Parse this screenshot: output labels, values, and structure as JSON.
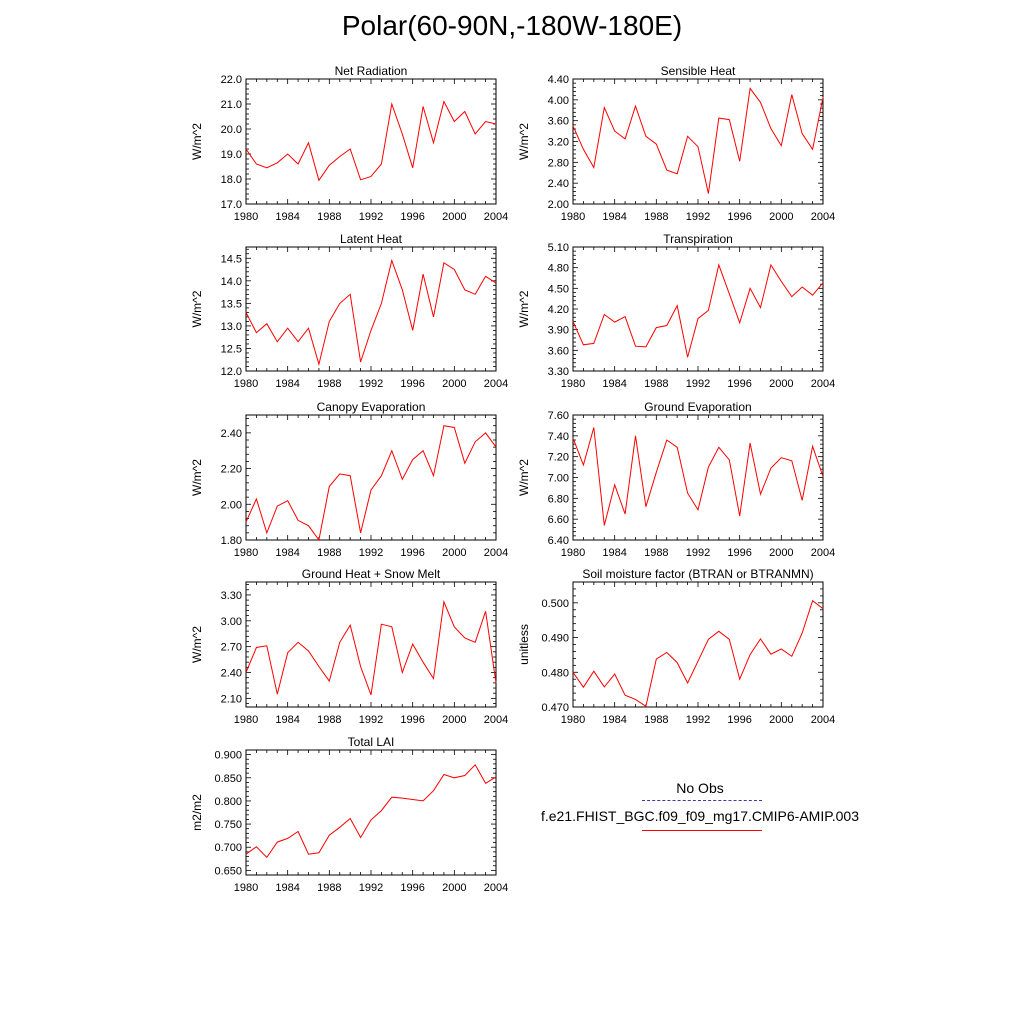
{
  "title": "Polar(60-90N,-180W-180E)",
  "legend": {
    "obs_label": "No Obs",
    "obs_color": "#3a3aa8",
    "model_label": "f.e21.FHIST_BGC.f09_f09_mg17.CMIP6-AMIP.003",
    "model_color": "#ff0000"
  },
  "chart_data": [
    {
      "type": "line",
      "title": "Net Radiation",
      "xlabel": "",
      "ylabel": "W/m^2",
      "xlim": [
        1980,
        2004
      ],
      "ylim": [
        17.0,
        22.0
      ],
      "xticks": [
        1980,
        1984,
        1988,
        1992,
        1996,
        2000,
        2004
      ],
      "yticks": [
        "17.0",
        "18.0",
        "19.0",
        "20.0",
        "21.0",
        "22.0"
      ],
      "x": [
        1980,
        1981,
        1982,
        1983,
        1984,
        1985,
        1986,
        1987,
        1988,
        1989,
        1990,
        1991,
        1992,
        1993,
        1994,
        1995,
        1996,
        1997,
        1998,
        1999,
        2000,
        2001,
        2002,
        2003,
        2004
      ],
      "series": [
        {
          "name": "f.e21.FHIST_BGC.f09_f09_mg17.CMIP6-AMIP.003",
          "values": [
            19.2,
            18.6,
            18.45,
            18.65,
            19.0,
            18.6,
            19.45,
            17.95,
            18.55,
            18.9,
            19.2,
            17.97,
            18.1,
            18.6,
            21.0,
            19.8,
            18.45,
            20.9,
            19.45,
            21.1,
            20.3,
            20.7,
            19.8,
            20.3,
            20.2
          ]
        }
      ]
    },
    {
      "type": "line",
      "title": "Sensible Heat",
      "xlabel": "",
      "ylabel": "W/m^2",
      "xlim": [
        1980,
        2004
      ],
      "ylim": [
        2.0,
        4.4
      ],
      "xticks": [
        1980,
        1984,
        1988,
        1992,
        1996,
        2000,
        2004
      ],
      "yticks": [
        "2.00",
        "2.40",
        "2.80",
        "3.20",
        "3.60",
        "4.00",
        "4.40"
      ],
      "x": [
        1980,
        1981,
        1982,
        1983,
        1984,
        1985,
        1986,
        1987,
        1988,
        1989,
        1990,
        1991,
        1992,
        1993,
        1994,
        1995,
        1996,
        1997,
        1998,
        1999,
        2000,
        2001,
        2002,
        2003,
        2004
      ],
      "series": [
        {
          "name": "f.e21.FHIST_BGC.f09_f09_mg17.CMIP6-AMIP.003",
          "values": [
            3.5,
            3.05,
            2.7,
            3.85,
            3.4,
            3.25,
            3.88,
            3.3,
            3.15,
            2.65,
            2.58,
            3.3,
            3.1,
            2.2,
            3.65,
            3.62,
            2.82,
            4.22,
            3.95,
            3.45,
            3.12,
            4.1,
            3.35,
            3.05,
            4.05
          ]
        }
      ]
    },
    {
      "type": "line",
      "title": "Latent Heat",
      "xlabel": "",
      "ylabel": "W/m^2",
      "xlim": [
        1980,
        2004
      ],
      "ylim": [
        12.0,
        14.75
      ],
      "xticks": [
        1980,
        1984,
        1988,
        1992,
        1996,
        2000,
        2004
      ],
      "yticks": [
        "12.0",
        "12.5",
        "13.0",
        "13.5",
        "14.0",
        "14.5"
      ],
      "x": [
        1980,
        1981,
        1982,
        1983,
        1984,
        1985,
        1986,
        1987,
        1988,
        1989,
        1990,
        1991,
        1992,
        1993,
        1994,
        1995,
        1996,
        1997,
        1998,
        1999,
        2000,
        2001,
        2002,
        2003,
        2004
      ],
      "series": [
        {
          "name": "f.e21.FHIST_BGC.f09_f09_mg17.CMIP6-AMIP.003",
          "values": [
            13.3,
            12.85,
            13.05,
            12.65,
            12.95,
            12.65,
            12.95,
            12.15,
            13.1,
            13.5,
            13.7,
            12.2,
            12.9,
            13.5,
            14.45,
            13.8,
            12.9,
            14.15,
            13.2,
            14.4,
            14.25,
            13.8,
            13.7,
            14.1,
            13.95
          ]
        }
      ]
    },
    {
      "type": "line",
      "title": "Transpiration",
      "xlabel": "",
      "ylabel": "W/m^2",
      "xlim": [
        1980,
        2004
      ],
      "ylim": [
        3.3,
        5.1
      ],
      "xticks": [
        1980,
        1984,
        1988,
        1992,
        1996,
        2000,
        2004
      ],
      "yticks": [
        "3.30",
        "3.60",
        "3.90",
        "4.20",
        "4.50",
        "4.80",
        "5.10"
      ],
      "x": [
        1980,
        1981,
        1982,
        1983,
        1984,
        1985,
        1986,
        1987,
        1988,
        1989,
        1990,
        1991,
        1992,
        1993,
        1994,
        1995,
        1996,
        1997,
        1998,
        1999,
        2000,
        2001,
        2002,
        2003,
        2004
      ],
      "series": [
        {
          "name": "f.e21.FHIST_BGC.f09_f09_mg17.CMIP6-AMIP.003",
          "values": [
            4.02,
            3.68,
            3.7,
            4.12,
            4.01,
            4.09,
            3.66,
            3.65,
            3.93,
            3.96,
            4.25,
            3.5,
            4.06,
            4.18,
            4.84,
            4.42,
            4.0,
            4.5,
            4.22,
            4.84,
            4.6,
            4.38,
            4.52,
            4.4,
            4.58
          ]
        }
      ]
    },
    {
      "type": "line",
      "title": "Canopy Evaporation",
      "xlabel": "",
      "ylabel": "W/m^2",
      "xlim": [
        1980,
        2004
      ],
      "ylim": [
        1.8,
        2.5
      ],
      "xticks": [
        1980,
        1984,
        1988,
        1992,
        1996,
        2000,
        2004
      ],
      "yticks": [
        "1.80",
        "2.00",
        "2.20",
        "2.40"
      ],
      "x": [
        1980,
        1981,
        1982,
        1983,
        1984,
        1985,
        1986,
        1987,
        1988,
        1989,
        1990,
        1991,
        1992,
        1993,
        1994,
        1995,
        1996,
        1997,
        1998,
        1999,
        2000,
        2001,
        2002,
        2003,
        2004
      ],
      "series": [
        {
          "name": "f.e21.FHIST_BGC.f09_f09_mg17.CMIP6-AMIP.003",
          "values": [
            1.9,
            2.03,
            1.84,
            1.99,
            2.02,
            1.91,
            1.88,
            1.8,
            2.1,
            2.17,
            2.16,
            1.84,
            2.08,
            2.16,
            2.3,
            2.14,
            2.25,
            2.3,
            2.16,
            2.44,
            2.43,
            2.23,
            2.35,
            2.4,
            2.32
          ]
        }
      ]
    },
    {
      "type": "line",
      "title": "Ground Evaporation",
      "xlabel": "",
      "ylabel": "W/m^2",
      "xlim": [
        1980,
        2004
      ],
      "ylim": [
        6.4,
        7.6
      ],
      "xticks": [
        1980,
        1984,
        1988,
        1992,
        1996,
        2000,
        2004
      ],
      "yticks": [
        "6.40",
        "6.60",
        "6.80",
        "7.00",
        "7.20",
        "7.40",
        "7.60"
      ],
      "x": [
        1980,
        1981,
        1982,
        1983,
        1984,
        1985,
        1986,
        1987,
        1988,
        1989,
        1990,
        1991,
        1992,
        1993,
        1994,
        1995,
        1996,
        1997,
        1998,
        1999,
        2000,
        2001,
        2002,
        2003,
        2004
      ],
      "series": [
        {
          "name": "f.e21.FHIST_BGC.f09_f09_mg17.CMIP6-AMIP.003",
          "values": [
            7.38,
            7.12,
            7.48,
            6.54,
            6.93,
            6.65,
            7.4,
            6.72,
            7.05,
            7.36,
            7.29,
            6.85,
            6.69,
            7.1,
            7.29,
            7.17,
            6.63,
            7.33,
            6.84,
            7.09,
            7.19,
            7.16,
            6.78,
            7.3,
            7.01
          ]
        }
      ]
    },
    {
      "type": "line",
      "title": "Ground Heat + Snow Melt",
      "xlabel": "",
      "ylabel": "W/m^2",
      "xlim": [
        1980,
        2004
      ],
      "ylim": [
        2.0,
        3.45
      ],
      "xticks": [
        1980,
        1984,
        1988,
        1992,
        1996,
        2000,
        2004
      ],
      "yticks": [
        "2.10",
        "2.40",
        "2.70",
        "3.00",
        "3.30"
      ],
      "x": [
        1980,
        1981,
        1982,
        1983,
        1984,
        1985,
        1986,
        1987,
        1988,
        1989,
        1990,
        1991,
        1992,
        1993,
        1994,
        1995,
        1996,
        1997,
        1998,
        1999,
        2000,
        2001,
        2002,
        2003,
        2004
      ],
      "series": [
        {
          "name": "f.e21.FHIST_BGC.f09_f09_mg17.CMIP6-AMIP.003",
          "values": [
            2.4,
            2.69,
            2.71,
            2.15,
            2.63,
            2.75,
            2.65,
            2.47,
            2.3,
            2.75,
            2.95,
            2.47,
            2.14,
            2.96,
            2.93,
            2.4,
            2.73,
            2.52,
            2.33,
            3.22,
            2.93,
            2.8,
            2.75,
            3.11,
            2.28
          ]
        }
      ]
    },
    {
      "type": "line",
      "title": "Soil moisture factor (BTRAN or BTRANMN)",
      "xlabel": "",
      "ylabel": "unitless",
      "xlim": [
        1980,
        2004
      ],
      "ylim": [
        0.47,
        0.506
      ],
      "xticks": [
        1980,
        1984,
        1988,
        1992,
        1996,
        2000,
        2004
      ],
      "yticks": [
        "0.470",
        "0.480",
        "0.490",
        "0.500"
      ],
      "x": [
        1980,
        1981,
        1982,
        1983,
        1984,
        1985,
        1986,
        1987,
        1988,
        1989,
        1990,
        1991,
        1992,
        1993,
        1994,
        1995,
        1996,
        1997,
        1998,
        1999,
        2000,
        2001,
        2002,
        2003,
        2004
      ],
      "series": [
        {
          "name": "f.e21.FHIST_BGC.f09_f09_mg17.CMIP6-AMIP.003",
          "values": [
            0.48,
            0.4757,
            0.4803,
            0.4758,
            0.4795,
            0.4734,
            0.4722,
            0.4702,
            0.4838,
            0.4857,
            0.4828,
            0.4769,
            0.4832,
            0.4895,
            0.4918,
            0.4895,
            0.478,
            0.4851,
            0.4896,
            0.4852,
            0.4867,
            0.4846,
            0.4913,
            0.5006,
            0.4983
          ]
        }
      ]
    },
    {
      "type": "line",
      "title": "Total LAI",
      "xlabel": "",
      "ylabel": "m2/m2",
      "xlim": [
        1980,
        2004
      ],
      "ylim": [
        0.64,
        0.91
      ],
      "xticks": [
        1980,
        1984,
        1988,
        1992,
        1996,
        2000,
        2004
      ],
      "yticks": [
        "0.650",
        "0.700",
        "0.750",
        "0.800",
        "0.850",
        "0.900"
      ],
      "x": [
        1980,
        1981,
        1982,
        1983,
        1984,
        1985,
        1986,
        1987,
        1988,
        1989,
        1990,
        1991,
        1992,
        1993,
        1994,
        1995,
        1996,
        1997,
        1998,
        1999,
        2000,
        2001,
        2002,
        2003,
        2004
      ],
      "series": [
        {
          "name": "f.e21.FHIST_BGC.f09_f09_mg17.CMIP6-AMIP.003",
          "values": [
            0.685,
            0.701,
            0.678,
            0.711,
            0.719,
            0.734,
            0.685,
            0.688,
            0.726,
            0.743,
            0.762,
            0.721,
            0.759,
            0.779,
            0.808,
            0.806,
            0.803,
            0.8,
            0.822,
            0.857,
            0.85,
            0.855,
            0.878,
            0.838,
            0.852
          ]
        }
      ]
    }
  ]
}
